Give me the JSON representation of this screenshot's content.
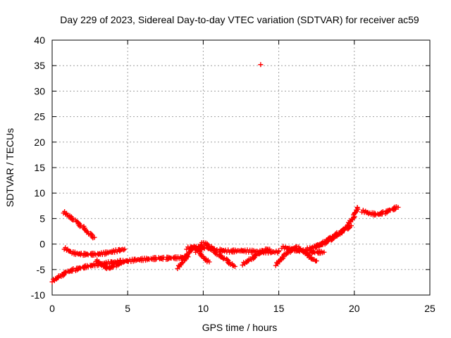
{
  "chart_data": {
    "type": "scatter",
    "title": "Day 229 of 2023, Sidereal Day-to-day VTEC variation (SDTVAR) for receiver ac59",
    "xlabel": "GPS time / hours",
    "ylabel": "SDTVAR / TECUs",
    "xlim": [
      0,
      25
    ],
    "ylim": [
      -10,
      40
    ],
    "xticks": [
      0,
      5,
      10,
      15,
      20,
      25
    ],
    "yticks": [
      -10,
      -5,
      0,
      5,
      10,
      15,
      20,
      25,
      30,
      35,
      40
    ],
    "grid": true,
    "marker": "+",
    "color": "#ff0000",
    "series": [
      {
        "name": "SDTVAR",
        "segments": [
          {
            "points": [
              [
                0.0,
                -7.2
              ],
              [
                0.5,
                -6.3
              ],
              [
                1.0,
                -5.4
              ],
              [
                1.5,
                -5.0
              ],
              [
                2.0,
                -4.6
              ],
              [
                2.5,
                -4.3
              ],
              [
                3.0,
                -4.0
              ],
              [
                3.5,
                -3.8
              ],
              [
                4.0,
                -3.6
              ],
              [
                4.5,
                -3.4
              ],
              [
                5.0,
                -3.3
              ],
              [
                5.5,
                -3.1
              ],
              [
                6.0,
                -3.0
              ],
              [
                6.5,
                -2.9
              ],
              [
                7.0,
                -2.8
              ],
              [
                7.5,
                -2.8
              ],
              [
                8.0,
                -2.7
              ],
              [
                8.5,
                -2.7
              ],
              [
                9.0,
                -2.5
              ]
            ]
          },
          {
            "points": [
              [
                0.8,
                -0.8
              ],
              [
                1.2,
                -1.6
              ],
              [
                1.6,
                -1.9
              ],
              [
                2.0,
                -2.0
              ],
              [
                2.5,
                -2.0
              ],
              [
                3.0,
                -2.0
              ],
              [
                3.5,
                -1.8
              ],
              [
                4.0,
                -1.5
              ],
              [
                4.5,
                -1.2
              ],
              [
                4.8,
                -1.0
              ]
            ]
          },
          {
            "points": [
              [
                0.75,
                6.3
              ],
              [
                1.0,
                5.6
              ],
              [
                1.5,
                4.6
              ],
              [
                2.0,
                3.4
              ],
              [
                2.5,
                2.0
              ],
              [
                2.8,
                1.3
              ]
            ]
          },
          {
            "points": [
              [
                2.9,
                -3.2
              ],
              [
                3.3,
                -4.2
              ],
              [
                3.7,
                -4.8
              ],
              [
                4.2,
                -4.1
              ],
              [
                4.7,
                -3.6
              ]
            ]
          },
          {
            "points": [
              [
                8.3,
                -4.6
              ],
              [
                8.7,
                -3.2
              ],
              [
                9.0,
                -1.8
              ],
              [
                9.3,
                -0.6
              ],
              [
                9.7,
                -1.1
              ],
              [
                10.0,
                -2.6
              ],
              [
                10.4,
                -3.5
              ]
            ]
          },
          {
            "points": [
              [
                9.5,
                -1.4
              ],
              [
                10.0,
                0.2
              ],
              [
                10.5,
                -0.6
              ],
              [
                11.0,
                -2.1
              ],
              [
                11.5,
                -3.0
              ],
              [
                11.9,
                -4.0
              ],
              [
                12.1,
                -4.4
              ]
            ]
          },
          {
            "points": [
              [
                8.9,
                -0.8
              ],
              [
                9.5,
                -0.6
              ],
              [
                10.2,
                -0.8
              ],
              [
                11.0,
                -1.2
              ],
              [
                11.8,
                -1.4
              ],
              [
                12.5,
                -1.3
              ],
              [
                13.2,
                -1.4
              ],
              [
                14.0,
                -1.5
              ],
              [
                14.5,
                -1.6
              ],
              [
                15.0,
                -1.5
              ]
            ]
          },
          {
            "points": [
              [
                12.6,
                -3.9
              ],
              [
                13.1,
                -3.0
              ],
              [
                13.6,
                -2.0
              ],
              [
                14.0,
                -1.2
              ],
              [
                14.4,
                -1.0
              ]
            ]
          },
          {
            "points": [
              [
                14.8,
                -4.0
              ],
              [
                15.1,
                -3.0
              ],
              [
                15.4,
                -2.0
              ],
              [
                15.7,
                -1.4
              ],
              [
                16.0,
                -0.8
              ],
              [
                16.3,
                -0.7
              ],
              [
                16.6,
                -1.2
              ],
              [
                16.9,
                -2.0
              ],
              [
                17.2,
                -2.8
              ],
              [
                17.5,
                -3.3
              ]
            ]
          },
          {
            "points": [
              [
                15.2,
                -0.6
              ],
              [
                15.8,
                -1.0
              ],
              [
                16.5,
                -1.4
              ],
              [
                17.0,
                -1.5
              ],
              [
                17.5,
                -1.6
              ],
              [
                18.0,
                -1.6
              ]
            ]
          },
          {
            "points": [
              [
                16.8,
                -1.0
              ],
              [
                17.2,
                -0.7
              ],
              [
                17.6,
                -0.3
              ],
              [
                18.0,
                0.2
              ],
              [
                18.4,
                0.8
              ],
              [
                18.8,
                1.5
              ],
              [
                19.2,
                2.4
              ],
              [
                19.6,
                3.7
              ],
              [
                20.0,
                5.6
              ],
              [
                20.2,
                7.2
              ]
            ]
          },
          {
            "points": [
              [
                17.5,
                -0.4
              ],
              [
                18.0,
                0.4
              ],
              [
                18.5,
                1.4
              ],
              [
                19.0,
                2.2
              ],
              [
                19.5,
                3.0
              ],
              [
                19.8,
                3.6
              ]
            ]
          },
          {
            "points": [
              [
                20.5,
                6.5
              ],
              [
                21.0,
                6.0
              ],
              [
                21.5,
                5.8
              ],
              [
                22.0,
                6.2
              ],
              [
                22.5,
                6.8
              ],
              [
                22.9,
                7.2
              ]
            ]
          },
          {
            "points": [
              [
                13.8,
                35.2
              ]
            ]
          }
        ]
      }
    ]
  }
}
